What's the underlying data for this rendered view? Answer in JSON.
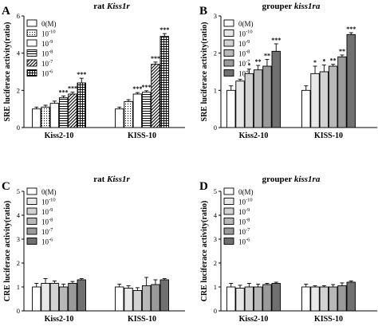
{
  "styles": {
    "rat": [
      "#ffffff",
      "dots",
      "#ffffff",
      "hlines",
      "diag",
      "grid"
    ],
    "grouper": [
      "#ffffff",
      "#e8e8e8",
      "#d2d2d2",
      "#b8b8b8",
      "#9a9a9a",
      "#707070"
    ]
  },
  "chart_data": [
    {
      "panel": "A",
      "type": "bar",
      "title_prefix": "rat ",
      "title_gene": "Kiss1r",
      "ylabel": "SRE luciferace activity(ratio)",
      "ylim": [
        0,
        6
      ],
      "yticks": [
        0,
        2,
        4,
        6
      ],
      "categories": [
        "Kiss2-10",
        "KISS-10"
      ],
      "legend": [
        "0(M)",
        "10",
        "10",
        "10",
        "10",
        "10"
      ],
      "legend_exp": [
        "",
        "-10",
        "-9",
        "-8",
        "-7",
        "-6"
      ],
      "style": "rat",
      "series": [
        {
          "values": [
            1.0,
            1.0
          ]
        },
        {
          "values": [
            1.1,
            1.4
          ]
        },
        {
          "values": [
            1.3,
            1.8
          ]
        },
        {
          "values": [
            1.6,
            1.9
          ]
        },
        {
          "values": [
            1.8,
            3.4
          ]
        },
        {
          "values": [
            2.4,
            4.9
          ]
        }
      ],
      "errors": [
        [
          0.1,
          0.1
        ],
        [
          0.1,
          0.1
        ],
        [
          0.12,
          0.08
        ],
        [
          0.1,
          0.08
        ],
        [
          0.1,
          0.12
        ],
        [
          0.25,
          0.15
        ]
      ],
      "significance": [
        [
          "",
          ""
        ],
        [
          "",
          ""
        ],
        [
          "",
          "***"
        ],
        [
          "***",
          "***"
        ],
        [
          "***",
          "***"
        ],
        [
          "***",
          "***"
        ]
      ]
    },
    {
      "panel": "B",
      "type": "bar",
      "title_prefix": "grouper ",
      "title_gene": "kiss1ra",
      "ylabel": "SRE luciferace activity(ratio)",
      "ylim": [
        0,
        3
      ],
      "yticks": [
        0,
        1,
        2,
        3
      ],
      "categories": [
        "Kiss2-10",
        "KISS-10"
      ],
      "legend": [
        "0(M)",
        "10",
        "10",
        "10",
        "10",
        "10"
      ],
      "legend_exp": [
        "",
        "-10",
        "-9",
        "-8",
        "-7",
        "-6"
      ],
      "style": "grouper",
      "series": [
        {
          "values": [
            1.0,
            1.0
          ]
        },
        {
          "values": [
            1.25,
            1.45
          ]
        },
        {
          "values": [
            1.45,
            1.5
          ]
        },
        {
          "values": [
            1.55,
            1.65
          ]
        },
        {
          "values": [
            1.65,
            1.9
          ]
        },
        {
          "values": [
            2.05,
            2.5
          ]
        }
      ],
      "errors": [
        [
          0.12,
          0.12
        ],
        [
          0.05,
          0.2
        ],
        [
          0.12,
          0.18
        ],
        [
          0.12,
          0.05
        ],
        [
          0.18,
          0.05
        ],
        [
          0.2,
          0.05
        ]
      ],
      "significance": [
        [
          "",
          ""
        ],
        [
          "",
          "*"
        ],
        [
          "*",
          "*"
        ],
        [
          "**",
          "**"
        ],
        [
          "**",
          "**"
        ],
        [
          "***",
          "***"
        ]
      ]
    },
    {
      "panel": "C",
      "type": "bar",
      "title_prefix": "rat ",
      "title_gene": "Kiss1r",
      "ylabel": "CRE luciferace activity(ratio)",
      "ylim": [
        0,
        5
      ],
      "yticks": [
        0,
        1,
        2,
        3,
        4,
        5
      ],
      "categories": [
        "Kiss2-10",
        "KISS-10"
      ],
      "legend": [
        "0(M)",
        "10",
        "10",
        "10",
        "10",
        "10"
      ],
      "legend_exp": [
        "",
        "-10",
        "-9",
        "-8",
        "-7",
        "-6"
      ],
      "style": "grouper",
      "series": [
        {
          "values": [
            1.0,
            1.0
          ]
        },
        {
          "values": [
            1.15,
            0.95
          ]
        },
        {
          "values": [
            1.15,
            0.85
          ]
        },
        {
          "values": [
            1.0,
            1.05
          ]
        },
        {
          "values": [
            1.15,
            1.1
          ]
        },
        {
          "values": [
            1.3,
            1.3
          ]
        }
      ],
      "errors": [
        [
          0.15,
          0.12
        ],
        [
          0.2,
          0.1
        ],
        [
          0.1,
          0.12
        ],
        [
          0.12,
          0.35
        ],
        [
          0.08,
          0.2
        ],
        [
          0.05,
          0.05
        ]
      ],
      "significance": [
        [
          "",
          ""
        ],
        [
          "",
          ""
        ],
        [
          "",
          ""
        ],
        [
          "",
          ""
        ],
        [
          "",
          ""
        ],
        [
          "",
          ""
        ]
      ]
    },
    {
      "panel": "D",
      "type": "bar",
      "title_prefix": "grouper ",
      "title_gene": "kiss1ra",
      "ylabel": "CRE luciferace activity(ratio)",
      "ylim": [
        0,
        5
      ],
      "yticks": [
        0,
        1,
        2,
        3,
        4,
        5
      ],
      "categories": [
        "Kiss2-10",
        "KISS-10"
      ],
      "legend": [
        "0(M)",
        "10",
        "10",
        "10",
        "10",
        "10"
      ],
      "legend_exp": [
        "",
        "-10",
        "-9",
        "-8",
        "-7",
        "-6"
      ],
      "style": "grouper",
      "series": [
        {
          "values": [
            1.0,
            1.0
          ]
        },
        {
          "values": [
            0.95,
            1.0
          ]
        },
        {
          "values": [
            1.0,
            1.0
          ]
        },
        {
          "values": [
            1.0,
            1.0
          ]
        },
        {
          "values": [
            1.1,
            1.05
          ]
        },
        {
          "values": [
            1.15,
            1.2
          ]
        }
      ],
      "errors": [
        [
          0.15,
          0.12
        ],
        [
          0.12,
          0.05
        ],
        [
          0.15,
          0.05
        ],
        [
          0.12,
          0.1
        ],
        [
          0.05,
          0.12
        ],
        [
          0.05,
          0.05
        ]
      ],
      "significance": [
        [
          "",
          ""
        ],
        [
          "",
          ""
        ],
        [
          "",
          ""
        ],
        [
          "",
          ""
        ],
        [
          "",
          ""
        ],
        [
          "",
          ""
        ]
      ]
    }
  ]
}
